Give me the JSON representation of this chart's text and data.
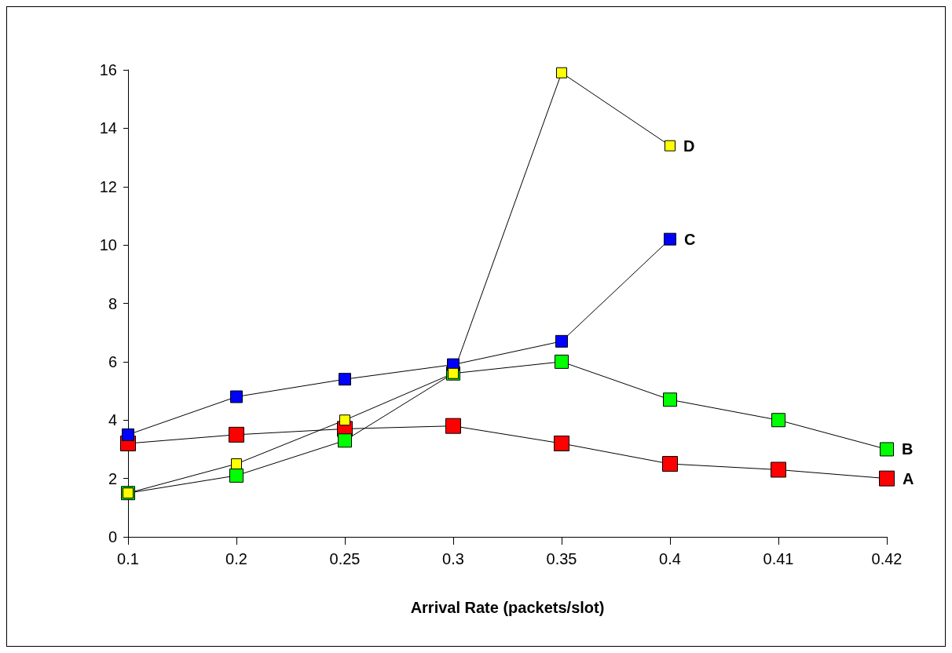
{
  "chart_data": {
    "type": "line",
    "xlabel": "Arrival Rate (packets/slot)",
    "categories": [
      "0.1",
      "0.2",
      "0.25",
      "0.3",
      "0.35",
      "0.4",
      "0.41",
      "0.42"
    ],
    "series": [
      {
        "name": "A",
        "color": "#ff0000",
        "values": [
          3.2,
          3.5,
          3.7,
          3.8,
          3.2,
          2.5,
          2.3,
          2.0
        ]
      },
      {
        "name": "B",
        "color": "#00ff00",
        "values": [
          1.5,
          2.1,
          3.3,
          5.6,
          6.0,
          4.7,
          4.0,
          3.0
        ]
      },
      {
        "name": "C",
        "color": "#0000ff",
        "values": [
          3.5,
          4.8,
          5.4,
          5.9,
          6.7,
          10.2,
          null,
          null
        ]
      },
      {
        "name": "D",
        "color": "#ffff00",
        "values": [
          1.5,
          2.5,
          4.0,
          5.6,
          15.9,
          13.4,
          null,
          null
        ]
      }
    ],
    "ylim": [
      0,
      16
    ],
    "yticks": [
      0,
      2,
      4,
      6,
      8,
      10,
      12,
      14,
      16
    ],
    "grid": false,
    "legend": false,
    "marker": "square",
    "line_style": "solid"
  }
}
